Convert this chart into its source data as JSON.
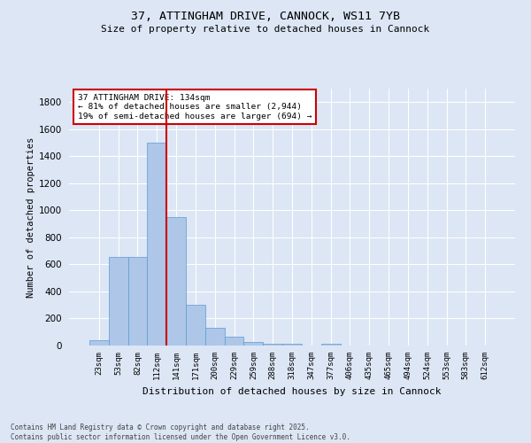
{
  "title_line1": "37, ATTINGHAM DRIVE, CANNOCK, WS11 7YB",
  "title_line2": "Size of property relative to detached houses in Cannock",
  "xlabel": "Distribution of detached houses by size in Cannock",
  "ylabel": "Number of detached properties",
  "categories": [
    "23sqm",
    "53sqm",
    "82sqm",
    "112sqm",
    "141sqm",
    "171sqm",
    "200sqm",
    "229sqm",
    "259sqm",
    "288sqm",
    "318sqm",
    "347sqm",
    "377sqm",
    "406sqm",
    "435sqm",
    "465sqm",
    "494sqm",
    "524sqm",
    "553sqm",
    "583sqm",
    "612sqm"
  ],
  "values": [
    40,
    655,
    655,
    1500,
    950,
    300,
    130,
    65,
    25,
    10,
    10,
    0,
    10,
    0,
    0,
    0,
    0,
    0,
    0,
    0,
    0
  ],
  "bar_color": "#aec6e8",
  "bar_edge_color": "#5b9bd5",
  "background_color": "#dce6f5",
  "grid_color": "#ffffff",
  "vline_color": "#cc0000",
  "annotation_text": "37 ATTINGHAM DRIVE: 134sqm\n← 81% of detached houses are smaller (2,944)\n19% of semi-detached houses are larger (694) →",
  "annotation_box_color": "#cc0000",
  "annotation_fill": "#ffffff",
  "ylim": [
    0,
    1900
  ],
  "yticks": [
    0,
    200,
    400,
    600,
    800,
    1000,
    1200,
    1400,
    1600,
    1800
  ],
  "footnote": "Contains HM Land Registry data © Crown copyright and database right 2025.\nContains public sector information licensed under the Open Government Licence v3.0."
}
